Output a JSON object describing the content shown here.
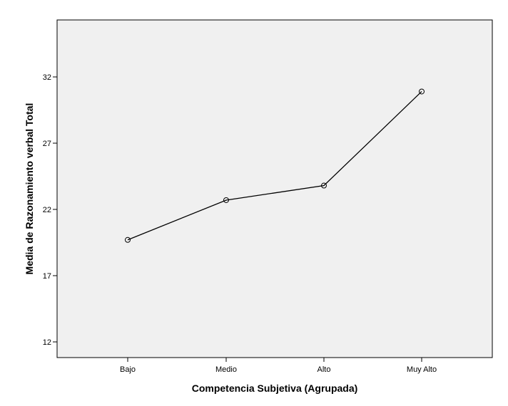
{
  "chart_data": {
    "type": "line",
    "title": "",
    "xlabel": "Competencia Subjetiva  (Agrupada)",
    "ylabel": "Media de Razonamiento verbal Total",
    "categories": [
      "Bajo",
      "Medio",
      "Alto",
      "Muy Alto"
    ],
    "series": [
      {
        "name": "Media de Razonamiento verbal Total",
        "values": [
          19.7,
          22.7,
          23.8,
          30.9
        ],
        "marker": "circle-open",
        "color": "#000000"
      }
    ],
    "yticks": [
      12,
      17,
      22,
      27,
      32
    ],
    "ylim": [
      10.6,
      36.1
    ],
    "grid": false,
    "legend": "none",
    "plot_background": "#f0f0f0"
  }
}
